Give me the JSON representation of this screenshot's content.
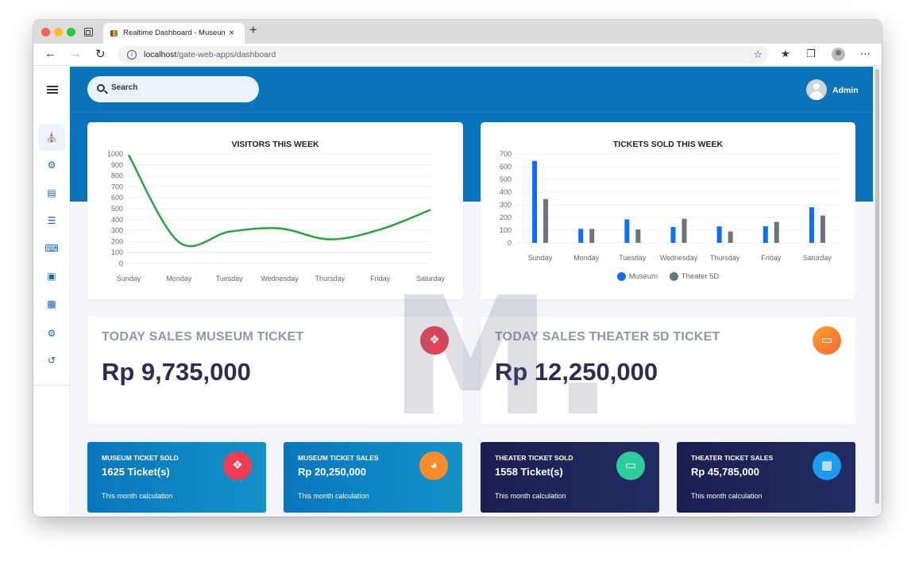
{
  "browser": {
    "tab_title": "Realtime Dashboard - Museum",
    "tab_close": "×",
    "new_tab": "+",
    "url_host": "localhost",
    "url_path": "/gate-web-apps/dashboard"
  },
  "header": {
    "search_placeholder": "Search",
    "user_name": "Admin"
  },
  "sidebar": {
    "items": [
      "museum-icon",
      "gear-icon",
      "contact-icon",
      "checklist-icon",
      "unlock-icon",
      "lock-icon",
      "gallery-icon",
      "gear-icon",
      "history-icon"
    ]
  },
  "visitors_chart": {
    "title": "VISITORS THIS WEEK",
    "chart_data": {
      "type": "line",
      "title": "VISITORS THIS WEEK",
      "categories": [
        "Sunday",
        "Monday",
        "Tuesday",
        "Wednesday",
        "Thursday",
        "Friday",
        "Saturday"
      ],
      "values": [
        990,
        195,
        290,
        320,
        220,
        310,
        490
      ],
      "yticks": [
        0,
        100,
        200,
        300,
        400,
        500,
        600,
        700,
        800,
        900,
        1000
      ],
      "ylim": [
        0,
        1000
      ],
      "grid": true,
      "color": "#2ea043"
    }
  },
  "tickets_chart": {
    "title": "TICKETS SOLD THIS WEEK",
    "chart_data": {
      "type": "bar",
      "title": "TICKETS SOLD THIS WEEK",
      "categories": [
        "Sunday",
        "Monday",
        "Tuesday",
        "Wednesday",
        "Thursday",
        "Friday",
        "Saturday"
      ],
      "series": [
        {
          "name": "Museum",
          "color": "#0d6efd",
          "values": [
            645,
            110,
            185,
            125,
            130,
            130,
            280
          ]
        },
        {
          "name": "Theater 5D",
          "color": "#6c757d",
          "values": [
            345,
            110,
            105,
            190,
            90,
            165,
            215
          ]
        }
      ],
      "yticks": [
        0,
        100,
        200,
        300,
        400,
        500,
        600,
        700
      ],
      "ylim": [
        0,
        700
      ],
      "grid": true,
      "legend": "bottom"
    }
  },
  "sales": {
    "museum": {
      "label": "TODAY SALES MUSEUM TICKET",
      "value": "Rp 9,735,000",
      "icon": "tag-icon",
      "color": "#ef3e54"
    },
    "theater": {
      "label": "TODAY SALES THEATER 5D TICKET",
      "value": "Rp 12,250,000",
      "icon": "monitor-icon",
      "color": "#fb8c2c"
    }
  },
  "stats": [
    {
      "label": "MUSEUM TICKET SOLD",
      "value": "1625 Ticket(s)",
      "sub": "This month calculation",
      "icon": "tag-icon",
      "icon_color": "#ef3e54"
    },
    {
      "label": "MUSEUM TICKET SALES",
      "value": "Rp 20,250,000",
      "sub": "This month calculation",
      "icon": "pie-icon",
      "icon_color": "#fb8c2c"
    },
    {
      "label": "THEATER TICKET SOLD",
      "value": "1558 Ticket(s)",
      "sub": "This month calculation",
      "icon": "monitor-icon",
      "icon_color": "#2ecc9a"
    },
    {
      "label": "THEATER TICKET SALES",
      "value": "Rp 45,785,000",
      "sub": "This month calculation",
      "icon": "bar-chart-icon",
      "icon_color": "#1e9bf0"
    }
  ],
  "watermark": "M."
}
